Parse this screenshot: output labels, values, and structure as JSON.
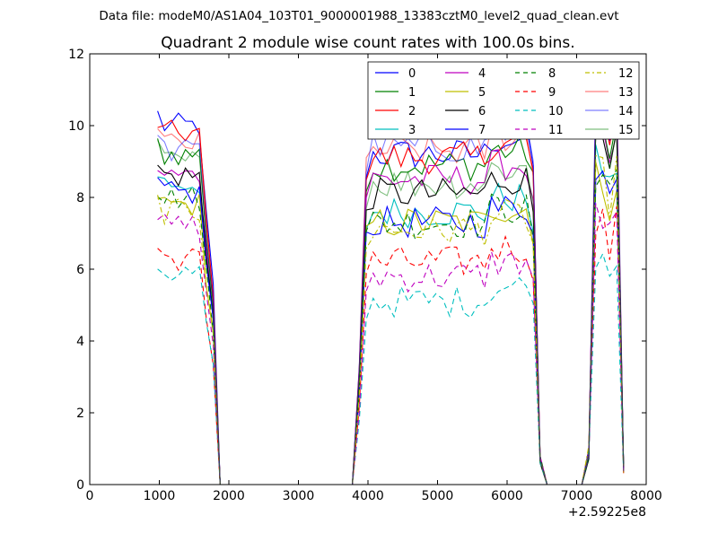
{
  "figure": {
    "suptitle": "Data file: modeM0/AS1A04_103T01_9000001988_13383cztM0_level2_quad_clean.evt"
  },
  "chart_data": {
    "type": "line",
    "title": "Quadrant 2 module wise count rates with 100.0s bins.",
    "xlabel": "",
    "ylabel": "",
    "xlim": [
      0,
      8000
    ],
    "ylim": [
      0,
      12
    ],
    "x_ticks": [
      0,
      1000,
      2000,
      3000,
      4000,
      5000,
      6000,
      7000,
      8000
    ],
    "y_ticks": [
      0,
      2,
      4,
      6,
      8,
      10,
      12
    ],
    "x_offset_label": "+2.59225e8",
    "grid": false,
    "legend": {
      "placement": "top-right",
      "columns": 4
    },
    "segments": [
      {
        "x0": 975,
        "dx": 100,
        "n": 9
      },
      {
        "x0": 1875,
        "dx": 100,
        "n": 20
      },
      {
        "x0": 3875,
        "dx": 100,
        "n": 26
      },
      {
        "x0": 6475,
        "dx": 100,
        "n": 7
      },
      {
        "x0": 7175,
        "dx": 100,
        "n": 6
      }
    ],
    "series": [
      {
        "name": "0",
        "color": "#0000ff",
        "dash": "solid",
        "level1": 10.0,
        "level2": 9.2,
        "level3": 10.4
      },
      {
        "name": "1",
        "color": "#008000",
        "dash": "solid",
        "level1": 9.2,
        "level2": 8.9,
        "level3": 9.8
      },
      {
        "name": "2",
        "color": "#ff0000",
        "dash": "solid",
        "level1": 9.8,
        "level2": 9.1,
        "level3": 10.4
      },
      {
        "name": "3",
        "color": "#00bfbf",
        "dash": "solid",
        "level1": 8.4,
        "level2": 7.6,
        "level3": 8.9
      },
      {
        "name": "4",
        "color": "#bf00bf",
        "dash": "solid",
        "level1": 8.6,
        "level2": 8.5,
        "level3": 9.6
      },
      {
        "name": "5",
        "color": "#bfbf00",
        "dash": "solid",
        "level1": 7.8,
        "level2": 7.3,
        "level3": 8.5
      },
      {
        "name": "6",
        "color": "#000000",
        "dash": "solid",
        "level1": 8.6,
        "level2": 8.1,
        "level3": 9.3
      },
      {
        "name": "7",
        "color": "#0000ff",
        "dash": "solid",
        "level1": 8.1,
        "level2": 7.3,
        "level3": 9.0
      },
      {
        "name": "8",
        "color": "#008000",
        "dash": "dashed",
        "level1": 8.0,
        "level2": 7.3,
        "level3": 8.8
      },
      {
        "name": "9",
        "color": "#ff0000",
        "dash": "dashed",
        "level1": 6.3,
        "level2": 6.2,
        "level3": 7.2
      },
      {
        "name": "10",
        "color": "#00bfbf",
        "dash": "dashed",
        "level1": 5.9,
        "level2": 5.1,
        "level3": 6.6
      },
      {
        "name": "11",
        "color": "#bf00bf",
        "dash": "dashed",
        "level1": 7.2,
        "level2": 5.8,
        "level3": 7.4
      },
      {
        "name": "12",
        "color": "#bfbf00",
        "dash": "dashdot",
        "level1": 7.6,
        "level2": 7.1,
        "level3": 8.6
      },
      {
        "name": "13",
        "color": "#ff0000",
        "dash": "solid",
        "level1": 9.5,
        "level2": 9.3,
        "level3": 10.6,
        "alpha": 0.5
      },
      {
        "name": "14",
        "color": "#0000ff",
        "dash": "solid",
        "level1": 9.3,
        "level2": 9.4,
        "level3": 10.9,
        "alpha": 0.5
      },
      {
        "name": "15",
        "color": "#008000",
        "dash": "solid",
        "level1": 9.0,
        "level2": 8.4,
        "level3": 9.8,
        "alpha": 0.5
      }
    ]
  }
}
